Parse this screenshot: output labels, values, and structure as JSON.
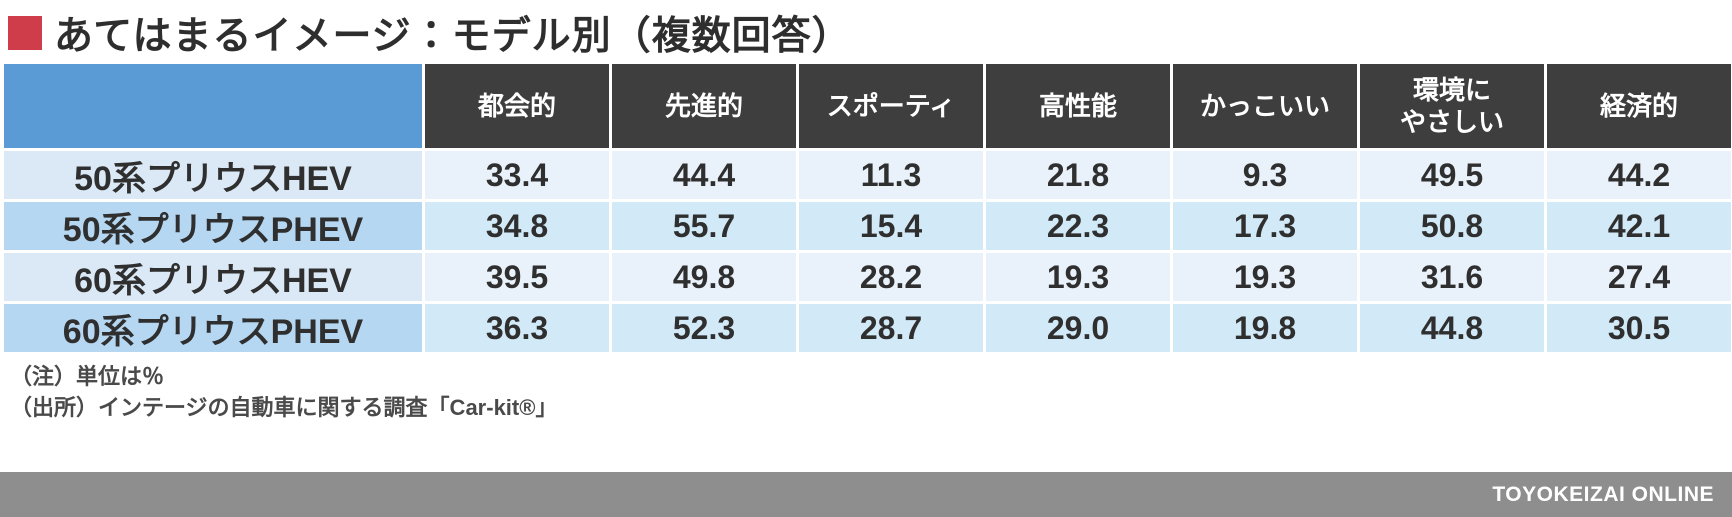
{
  "colors": {
    "accent_red": "#cf3c4a",
    "header_bg": "#3e3e3e",
    "corner_blue": "#5b9bd5",
    "row_odd_label": "#dbe9f6",
    "row_odd_value": "#e9f2fa",
    "row_even_label": "#b6d7f2",
    "row_even_value": "#d2e9f7",
    "footer_gray": "#8e8e8e"
  },
  "title": {
    "text": "あてはまるイメージ：モデル別（複数回答）"
  },
  "table": {
    "columns": [
      "都会的",
      "先進的",
      "スポーティ",
      "高性能",
      "かっこいい",
      "環境に\nやさしい",
      "経済的"
    ],
    "rows": [
      {
        "label": "50系プリウスHEV",
        "values": [
          "33.4",
          "44.4",
          "11.3",
          "21.8",
          "9.3",
          "49.5",
          "44.2"
        ]
      },
      {
        "label": "50系プリウスPHEV",
        "values": [
          "34.8",
          "55.7",
          "15.4",
          "22.3",
          "17.3",
          "50.8",
          "42.1"
        ]
      },
      {
        "label": "60系プリウスHEV",
        "values": [
          "39.5",
          "49.8",
          "28.2",
          "19.3",
          "19.3",
          "31.6",
          "27.4"
        ]
      },
      {
        "label": "60系プリウスPHEV",
        "values": [
          "36.3",
          "52.3",
          "28.7",
          "29.0",
          "19.8",
          "44.8",
          "30.5"
        ]
      }
    ]
  },
  "notes": {
    "unit_note": "（注）単位は％",
    "source_note": "（出所）インテージの自動車に関する調査「Car-kit®」"
  },
  "footer": {
    "brand": "TOYOKEIZAI ONLINE"
  },
  "chart_data": {
    "type": "table",
    "title": "あてはまるイメージ：モデル別（複数回答）",
    "categories": [
      "都会的",
      "先進的",
      "スポーティ",
      "高性能",
      "かっこいい",
      "環境にやさしい",
      "経済的"
    ],
    "series": [
      {
        "name": "50系プリウスHEV",
        "values": [
          33.4,
          44.4,
          11.3,
          21.8,
          9.3,
          49.5,
          44.2
        ]
      },
      {
        "name": "50系プリウスPHEV",
        "values": [
          34.8,
          55.7,
          15.4,
          22.3,
          17.3,
          50.8,
          42.1
        ]
      },
      {
        "name": "60系プリウスHEV",
        "values": [
          39.5,
          49.8,
          28.2,
          19.3,
          19.3,
          31.6,
          27.4
        ]
      },
      {
        "name": "60系プリウスPHEV",
        "values": [
          36.3,
          52.3,
          28.7,
          29.0,
          19.8,
          44.8,
          30.5
        ]
      }
    ],
    "unit": "%",
    "source": "インテージの自動車に関する調査「Car-kit®」"
  }
}
